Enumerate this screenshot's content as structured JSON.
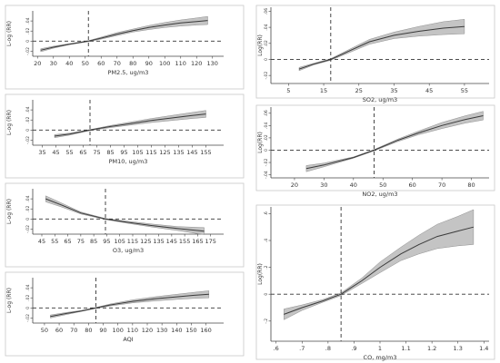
{
  "chart_data": [
    {
      "type": "line",
      "id": "pm25",
      "xlabel": "PM2.5, ug/m3",
      "ylabel": "L-og (RR)",
      "x_ticks": [
        20,
        30,
        40,
        50,
        60,
        70,
        80,
        90,
        100,
        110,
        120,
        130
      ],
      "y_ticks": [
        "-.02",
        "0",
        ".02",
        ".04"
      ],
      "xlim": [
        17,
        137
      ],
      "ylim": [
        -0.03,
        0.06
      ],
      "reference_x": 52,
      "reference_y": 0,
      "x": [
        22,
        30,
        40,
        52,
        60,
        70,
        80,
        90,
        100,
        110,
        120,
        127
      ],
      "y": [
        -0.018,
        -0.012,
        -0.006,
        0.0,
        0.006,
        0.014,
        0.021,
        0.027,
        0.032,
        0.036,
        0.039,
        0.041
      ],
      "ci_low": [
        -0.021,
        -0.014,
        -0.007,
        -0.001,
        0.004,
        0.011,
        0.018,
        0.023,
        0.027,
        0.03,
        0.032,
        0.033
      ],
      "ci_high": [
        -0.015,
        -0.01,
        -0.005,
        0.001,
        0.008,
        0.017,
        0.024,
        0.031,
        0.037,
        0.042,
        0.046,
        0.049
      ]
    },
    {
      "type": "line",
      "id": "pm10",
      "xlabel": "PM10, ug/m3",
      "ylabel": "L-og (RR)",
      "x_ticks": [
        35,
        45,
        55,
        65,
        75,
        85,
        95,
        105,
        115,
        125,
        135,
        145,
        155
      ],
      "y_ticks": [
        "-.02",
        "0",
        ".02",
        ".04"
      ],
      "xlim": [
        28,
        168
      ],
      "ylim": [
        -0.03,
        0.06
      ],
      "reference_x": 70,
      "reference_y": 0,
      "x": [
        44,
        55,
        70,
        85,
        100,
        115,
        130,
        145,
        155
      ],
      "y": [
        -0.012,
        -0.008,
        0.0,
        0.007,
        0.013,
        0.019,
        0.024,
        0.029,
        0.032
      ],
      "ci_low": [
        -0.015,
        -0.01,
        -0.001,
        0.005,
        0.01,
        0.015,
        0.019,
        0.023,
        0.025
      ],
      "ci_high": [
        -0.009,
        -0.006,
        0.001,
        0.009,
        0.016,
        0.023,
        0.029,
        0.035,
        0.039
      ]
    },
    {
      "type": "line",
      "id": "o3",
      "xlabel": "O3, ug/m3",
      "ylabel": "L-og (RR)",
      "x_ticks": [
        45,
        55,
        65,
        75,
        85,
        95,
        105,
        115,
        125,
        135,
        145,
        155,
        165,
        175
      ],
      "y_ticks": [
        "-.02",
        "0",
        ".02",
        ".04"
      ],
      "xlim": [
        38,
        185
      ],
      "ylim": [
        -0.03,
        0.06
      ],
      "reference_x": 94,
      "reference_y": 0,
      "x": [
        48,
        60,
        75,
        94,
        110,
        130,
        150,
        170
      ],
      "y": [
        0.04,
        0.028,
        0.012,
        0.0,
        -0.006,
        -0.013,
        -0.019,
        -0.024
      ],
      "ci_low": [
        0.034,
        0.024,
        0.01,
        -0.001,
        -0.008,
        -0.016,
        -0.023,
        -0.031
      ],
      "ci_high": [
        0.046,
        0.032,
        0.014,
        0.001,
        -0.004,
        -0.01,
        -0.015,
        -0.017
      ]
    },
    {
      "type": "line",
      "id": "aqi",
      "xlabel": "AQI",
      "ylabel": "L-og (RR)",
      "x_ticks": [
        50,
        60,
        70,
        80,
        90,
        100,
        110,
        120,
        130,
        140,
        150,
        160
      ],
      "y_ticks": [
        "-.02",
        "0",
        ".02",
        ".04"
      ],
      "xlim": [
        42,
        172
      ],
      "ylim": [
        -0.03,
        0.06
      ],
      "reference_x": 85,
      "reference_y": 0,
      "x": [
        54,
        65,
        75,
        85,
        95,
        110,
        125,
        140,
        152,
        162
      ],
      "y": [
        -0.017,
        -0.011,
        -0.006,
        0.0,
        0.006,
        0.013,
        0.018,
        0.022,
        0.025,
        0.027
      ],
      "ci_low": [
        -0.02,
        -0.013,
        -0.007,
        -0.001,
        0.004,
        0.01,
        0.014,
        0.017,
        0.019,
        0.02
      ],
      "ci_high": [
        -0.014,
        -0.009,
        -0.005,
        0.001,
        0.008,
        0.016,
        0.022,
        0.027,
        0.031,
        0.034
      ]
    },
    {
      "type": "line",
      "id": "so2",
      "xlabel": "SO2, ug/m3",
      "ylabel": "Log(RR)",
      "x_ticks": [
        5,
        15,
        25,
        35,
        45,
        55
      ],
      "y_ticks": [
        ".06",
        ".04",
        ".02",
        "0",
        "-.02"
      ],
      "xlim": [
        0,
        62
      ],
      "ylim": [
        -0.03,
        0.065
      ],
      "reference_x": 17,
      "reference_y": 0,
      "x": [
        8,
        12,
        17,
        22,
        28,
        35,
        42,
        49,
        55
      ],
      "y": [
        -0.012,
        -0.006,
        0.0,
        0.01,
        0.022,
        0.03,
        0.035,
        0.039,
        0.041
      ],
      "ci_low": [
        -0.014,
        -0.007,
        -0.001,
        0.008,
        0.019,
        0.026,
        0.029,
        0.031,
        0.032
      ],
      "ci_high": [
        -0.01,
        -0.005,
        0.001,
        0.012,
        0.025,
        0.034,
        0.041,
        0.047,
        0.05
      ]
    },
    {
      "type": "line",
      "id": "no2",
      "xlabel": "NO2, ug/m3",
      "ylabel": "Log(RR)",
      "x_ticks": [
        20,
        30,
        40,
        50,
        60,
        70,
        80
      ],
      "y_ticks": [
        ".06",
        ".04",
        ".02",
        "0",
        "-.02",
        "-.04"
      ],
      "xlim": [
        12,
        86
      ],
      "ylim": [
        -0.045,
        0.07
      ],
      "reference_x": 47,
      "reference_y": 0,
      "x": [
        24,
        30,
        40,
        47,
        55,
        62,
        70,
        78,
        84
      ],
      "y": [
        -0.03,
        -0.024,
        -0.012,
        0.0,
        0.016,
        0.028,
        0.04,
        0.05,
        0.056
      ],
      "ci_low": [
        -0.035,
        -0.027,
        -0.013,
        -0.001,
        0.014,
        0.025,
        0.035,
        0.044,
        0.049
      ],
      "ci_high": [
        -0.025,
        -0.021,
        -0.011,
        0.001,
        0.018,
        0.031,
        0.045,
        0.056,
        0.063
      ]
    },
    {
      "type": "line",
      "id": "co",
      "xlabel": "CO, mg/m3",
      "ylabel": "Log(RR)",
      "x_ticks": [
        ".6",
        ".7",
        ".8",
        ".9",
        "1",
        "1.1",
        "1.2",
        "1.3",
        "1.4"
      ],
      "y_ticks": [
        ".6",
        ".4",
        ".2",
        "0",
        "-.2"
      ],
      "xlim": [
        0.58,
        1.42
      ],
      "ylim": [
        -0.35,
        0.65
      ],
      "reference_x": 0.85,
      "reference_y": 0,
      "x": [
        0.63,
        0.7,
        0.78,
        0.85,
        0.93,
        1.0,
        1.08,
        1.15,
        1.22,
        1.3,
        1.36
      ],
      "y": [
        -0.15,
        -0.1,
        -0.05,
        0.0,
        0.1,
        0.2,
        0.3,
        0.37,
        0.43,
        0.47,
        0.5
      ],
      "ci_low": [
        -0.19,
        -0.12,
        -0.06,
        -0.01,
        0.08,
        0.16,
        0.25,
        0.3,
        0.34,
        0.36,
        0.37
      ],
      "ci_high": [
        -0.11,
        -0.08,
        -0.04,
        0.01,
        0.12,
        0.24,
        0.35,
        0.44,
        0.52,
        0.58,
        0.63
      ]
    }
  ],
  "colors": {
    "band": "#c4c4c4",
    "band_stroke": "#8f8f8f",
    "line": "#3a3a3a",
    "ref_line": "#333333",
    "axis": "#444444"
  }
}
